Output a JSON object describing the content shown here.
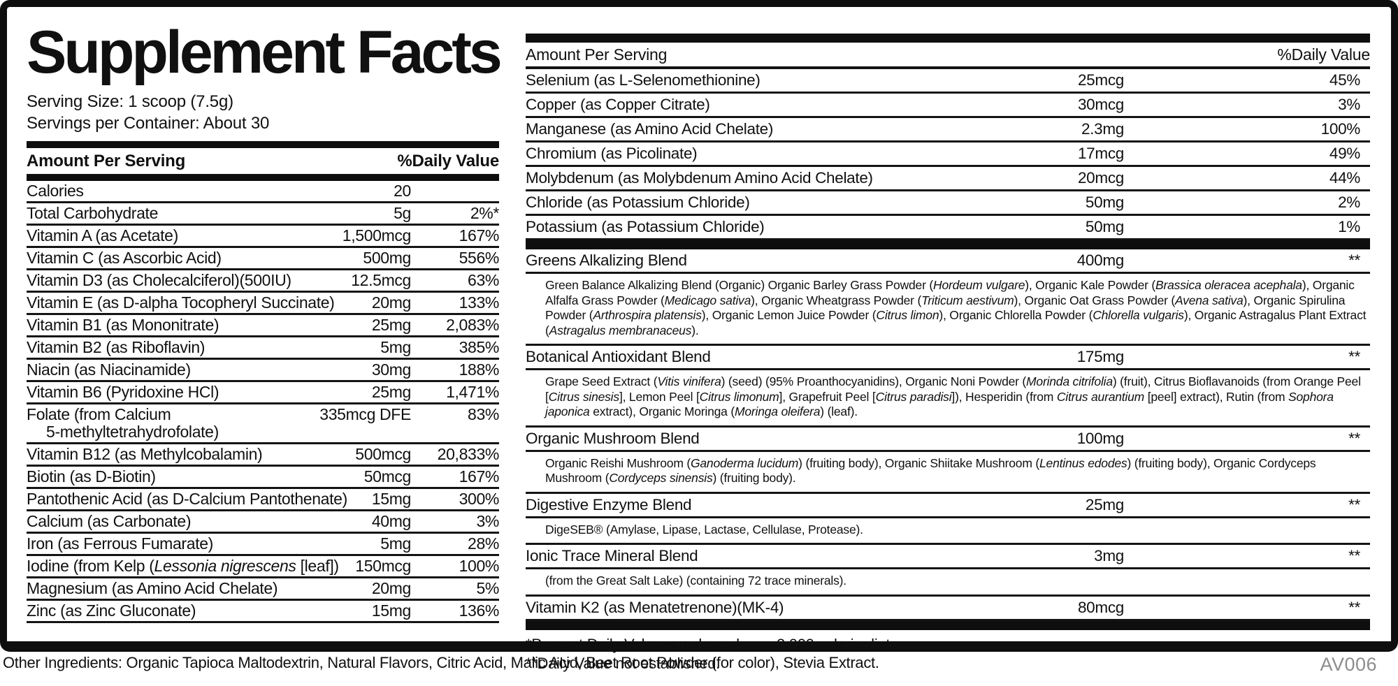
{
  "title": "Supplement Facts",
  "serving": {
    "size": "Serving Size: 1 scoop (7.5g)",
    "per_container": "Servings per Container: About 30"
  },
  "left_table": {
    "header": {
      "amount": "Amount Per Serving",
      "dv": "%Daily Value"
    },
    "rows": [
      {
        "name": [
          "Calories"
        ],
        "amount": "20",
        "dv": ""
      },
      {
        "name": [
          "Total Carbohydrate"
        ],
        "amount": "5g",
        "dv": "2%*"
      },
      {
        "name": [
          "Vitamin A (as Acetate)"
        ],
        "amount": "1,500mcg",
        "dv": "167%"
      },
      {
        "name": [
          "Vitamin C (as Ascorbic Acid)"
        ],
        "amount": "500mg",
        "dv": "556%"
      },
      {
        "name": [
          "Vitamin D3 (as Cholecalciferol)(500IU)"
        ],
        "amount": "12.5mcg",
        "dv": "63%"
      },
      {
        "name": [
          "Vitamin E (as D-alpha Tocopheryl Succinate)"
        ],
        "amount": "20mg",
        "dv": "133%"
      },
      {
        "name": [
          "Vitamin B1 (as Mononitrate)"
        ],
        "amount": "25mg",
        "dv": "2,083%"
      },
      {
        "name": [
          "Vitamin B2 (as Riboflavin)"
        ],
        "amount": "5mg",
        "dv": "385%"
      },
      {
        "name": [
          "Niacin (as Niacinamide)"
        ],
        "amount": "30mg",
        "dv": "188%"
      },
      {
        "name": [
          "Vitamin B6 (Pyridoxine HCl)"
        ],
        "amount": "25mg",
        "dv": "1,471%"
      },
      {
        "name": [
          "Folate (from Calcium"
        ],
        "name_line2": "5-methyltetrahydrofolate)",
        "amount": "335mcg DFE",
        "dv": "83%"
      },
      {
        "name": [
          "Vitamin B12 (as Methylcobalamin)"
        ],
        "amount": "500mcg",
        "dv": "20,833%"
      },
      {
        "name": [
          "Biotin (as D-Biotin)"
        ],
        "amount": "50mcg",
        "dv": "167%"
      },
      {
        "name": [
          "Pantothenic Acid (as D-Calcium Pantothenate)"
        ],
        "amount": "15mg",
        "dv": "300%"
      },
      {
        "name": [
          "Calcium (as Carbonate)"
        ],
        "amount": "40mg",
        "dv": "3%"
      },
      {
        "name": [
          "Iron (as Ferrous Fumarate)"
        ],
        "amount": "5mg",
        "dv": "28%"
      },
      {
        "name": [
          "Iodine (from Kelp (",
          {
            "i": "Lessonia nigrescens"
          },
          " [leaf])"
        ],
        "amount": "150mcg",
        "dv": "100%"
      },
      {
        "name": [
          "Magnesium (as Amino Acid Chelate)"
        ],
        "amount": "20mg",
        "dv": "5%"
      },
      {
        "name": [
          "Zinc (as Zinc Gluconate)"
        ],
        "amount": "15mg",
        "dv": "136%"
      }
    ]
  },
  "right_table": {
    "header": {
      "amount": "Amount Per Serving",
      "dv": "%Daily Value"
    },
    "rows": [
      {
        "name": [
          "Selenium (as L-Selenomethionine)"
        ],
        "amount": "25mcg",
        "dv": "45%"
      },
      {
        "name": [
          "Copper (as Copper Citrate)"
        ],
        "amount": "30mcg",
        "dv": "3%"
      },
      {
        "name": [
          "Manganese (as Amino Acid Chelate)"
        ],
        "amount": "2.3mg",
        "dv": "100%"
      },
      {
        "name": [
          "Chromium (as Picolinate)"
        ],
        "amount": "17mcg",
        "dv": "49%"
      },
      {
        "name": [
          "Molybdenum (as Molybdenum Amino Acid Chelate)"
        ],
        "amount": "20mcg",
        "dv": "44%"
      },
      {
        "name": [
          "Chloride (as Potassium Chloride)"
        ],
        "amount": "50mg",
        "dv": "2%"
      },
      {
        "name": [
          "Potassium (as Potassium Chloride)"
        ],
        "amount": "50mg",
        "dv": "1%"
      }
    ],
    "blends": [
      {
        "name": [
          "Greens Alkalizing Blend"
        ],
        "amount": "400mg",
        "dv": "**",
        "desc": [
          "Green Balance Alkalizing Blend (Organic) Organic Barley Grass Powder (",
          {
            "i": "Hordeum vulgare"
          },
          "), Organic Kale Powder (",
          {
            "i": "Brassica oleracea acephala"
          },
          "), Organic Alfalfa Grass Powder (",
          {
            "i": "Medicago sativa"
          },
          "), Organic Wheatgrass Powder (",
          {
            "i": "Triticum aestivum"
          },
          "), Organic Oat Grass Powder (",
          {
            "i": "Avena sativa"
          },
          "), Organic Spirulina Powder (",
          {
            "i": "Arthrospira platensis"
          },
          "), Organic Lemon Juice Powder (",
          {
            "i": "Citrus limon"
          },
          "), Organic Chlorella Powder (",
          {
            "i": "Chlorella vulgaris"
          },
          "), Organic Astragalus Plant Extract (",
          {
            "i": "Astragalus membranaceus"
          },
          ")."
        ]
      },
      {
        "name": [
          "Botanical Antioxidant Blend"
        ],
        "amount": "175mg",
        "dv": "**",
        "desc": [
          "Grape Seed Extract (",
          {
            "i": "Vitis vinifera"
          },
          ") (seed) (95% Proanthocyanidins), Organic Noni Powder (",
          {
            "i": "Morinda citrifolia"
          },
          ") (fruit), Citrus Bioflavanoids (from Orange Peel [",
          {
            "i": "Citrus sinesis"
          },
          "], Lemon Peel [",
          {
            "i": "Citrus limonum"
          },
          "], Grapefruit Peel [",
          {
            "i": "Citrus paradisi"
          },
          "]), Hesperidin (from ",
          {
            "i": "Citrus aurantium"
          },
          " [peel] extract), Rutin (from ",
          {
            "i": "Sophora japonica"
          },
          " extract), Organic Moringa (",
          {
            "i": "Moringa oleifera"
          },
          ") (leaf)."
        ]
      },
      {
        "name": [
          "Organic Mushroom Blend"
        ],
        "amount": "100mg",
        "dv": "**",
        "desc": [
          "Organic Reishi Mushroom (",
          {
            "i": "Ganoderma lucidum"
          },
          ") (fruiting body), Organic Shiitake Mushroom (",
          {
            "i": "Lentinus edodes"
          },
          ") (fruiting body), Organic Cordyceps Mushroom (",
          {
            "i": "Cordyceps sinensis"
          },
          ") (fruiting body)."
        ]
      },
      {
        "name": [
          "Digestive Enzyme Blend"
        ],
        "amount": "25mg",
        "dv": "**",
        "desc": [
          "DigeSEB® (Amylase, Lipase, Lactase, Cellulase, Protease)."
        ]
      },
      {
        "name": [
          "Ionic Trace Mineral Blend"
        ],
        "amount": "3mg",
        "dv": "**",
        "desc": [
          "(from the Great Salt Lake) (containing 72 trace minerals)."
        ]
      },
      {
        "name": [
          "Vitamin K2 (as Menatetrenone)(MK-4)"
        ],
        "amount": "80mcg",
        "dv": "**",
        "desc": null
      }
    ],
    "footnotes": [
      "*Percent Daily Values are based on a 2,000 calorie diet.",
      "**Daily Value not established."
    ]
  },
  "footer": {
    "other_ingredients": "Other Ingredients: Organic Tapioca Maltodextrin, Natural Flavors, Citric Acid, Malic Acid, Beet Root Powder (for color), Stevia Extract.",
    "code": "AV006"
  }
}
